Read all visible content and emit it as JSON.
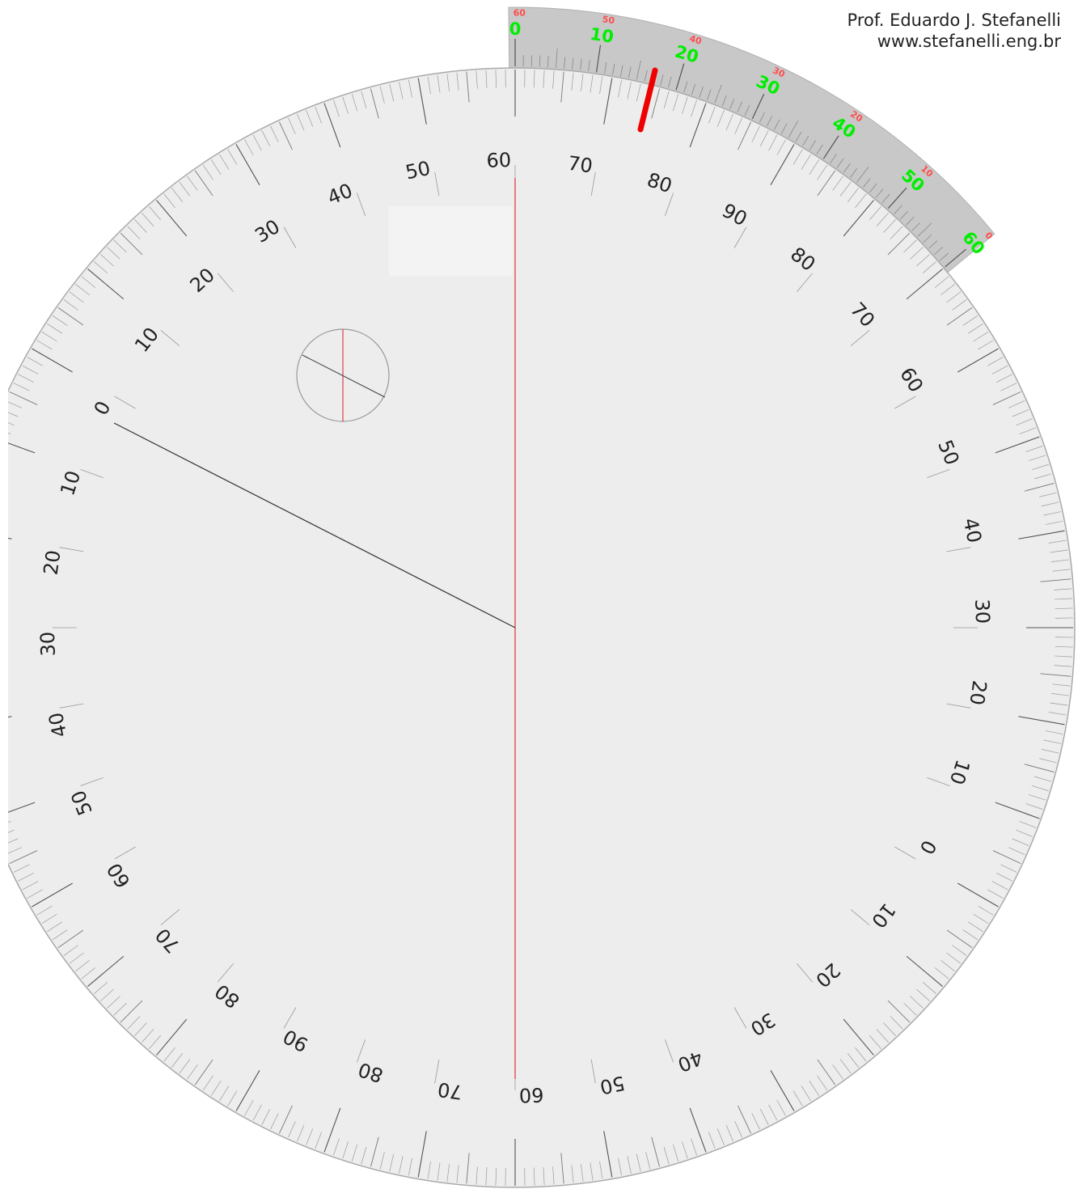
{
  "author": {
    "name": "Prof. Eduardo J. Stefanelli",
    "website": "www.stefanelli.eng.br"
  },
  "colors": {
    "disc_fill": "#ededed",
    "disc_edge": "#aaaaaa",
    "vernier_fill": "#c8c8c8",
    "vernier_major": "#00ee00",
    "vernier_minor": "#ff4d4d",
    "indicator": "#ee0000",
    "pointer_line": "#333333",
    "hairline": "#e04040",
    "tick": "#555555",
    "label": "#222222"
  },
  "protractor": {
    "label_sequence": [
      "0",
      "10",
      "20",
      "30",
      "40",
      "50",
      "60",
      "70",
      "80",
      "90",
      "80",
      "70",
      "60",
      "50",
      "40",
      "30",
      "20",
      "10",
      "0",
      "10",
      "20",
      "30",
      "40",
      "50",
      "60",
      "70",
      "80",
      "90",
      "80",
      "70",
      "60",
      "50",
      "40",
      "30",
      "20",
      "10"
    ]
  },
  "vernier": {
    "major_labels": [
      "0",
      "10",
      "20",
      "30",
      "40",
      "50",
      "60"
    ],
    "minor_labels": [
      "60",
      "50",
      "40",
      "30",
      "20",
      "10",
      "0"
    ]
  },
  "reading": {
    "pointer_description": "line from center toward the upper-left '0' graduation",
    "indicator": "red marker on vernier between 10 and 20"
  }
}
